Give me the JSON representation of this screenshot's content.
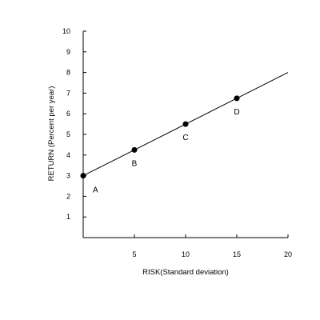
{
  "chart_data": {
    "type": "line",
    "title": "",
    "xlabel": "RISK(Standard deviation)",
    "ylabel": "RETURN (Percent per year)",
    "xlim": [
      0,
      20
    ],
    "ylim": [
      0,
      10
    ],
    "x_ticks": [
      5,
      10,
      15,
      20
    ],
    "y_ticks": [
      1,
      2,
      3,
      4,
      5,
      6,
      7,
      8,
      9,
      10
    ],
    "grid": false,
    "line": {
      "x": [
        0,
        20
      ],
      "y": [
        3,
        8
      ]
    },
    "points": [
      {
        "label": "A",
        "x": 0,
        "y": 3
      },
      {
        "label": "B",
        "x": 5,
        "y": 4.25
      },
      {
        "label": "C",
        "x": 10,
        "y": 5.5
      },
      {
        "label": "D",
        "x": 15,
        "y": 6.75
      }
    ],
    "colors": {
      "axis": "#000000",
      "line": "#000000",
      "point": "#000000"
    }
  }
}
